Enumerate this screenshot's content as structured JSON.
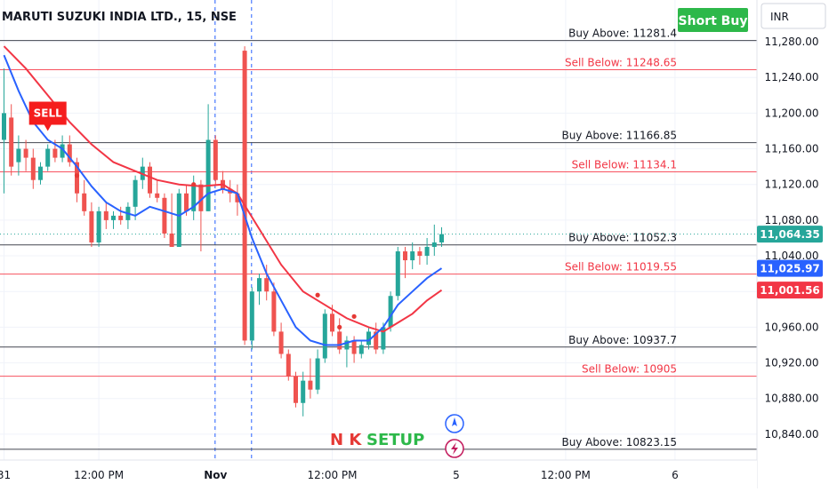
{
  "header": {
    "symbol_title": "MARUTI SUZUKI INDIA LTD., 15, NSE",
    "currency": "INR",
    "badge": "Short Buy",
    "badge_color": "#2db84a"
  },
  "colors": {
    "up": "#26a69a",
    "down": "#ef5350",
    "ema_fast": "#2962ff",
    "ema_slow": "#f23645",
    "buy_line": "#434651",
    "sell_line": "#f7525f",
    "current_price_line": "#26a69a",
    "session_sep": "#2962ff",
    "grid": "#f0f3fa"
  },
  "chart_data": {
    "type": "candlestick",
    "title": "MARUTI SUZUKI INDIA LTD., 15, NSE",
    "ylim": [
      10817,
      11290
    ],
    "yticks": [
      10840,
      10880,
      10920,
      10960,
      11000,
      11040,
      11080,
      11120,
      11160,
      11200,
      11240,
      11280
    ],
    "ytick_labels": [
      "10,840.00",
      "10,880.00",
      "10,920.00",
      "10,960.00",
      "11,000.00",
      "11,040.00",
      "11,080.00",
      "11,120.00",
      "11,160.00",
      "11,200.00",
      "11,240.00",
      "11,280.00"
    ],
    "xticks": [
      {
        "bar": 0,
        "label": "31"
      },
      {
        "bar": 13,
        "label": "12:00 PM"
      },
      {
        "bar": 29,
        "label": "Nov"
      },
      {
        "bar": 45,
        "label": "12:00 PM"
      },
      {
        "bar": 62,
        "label": "5"
      },
      {
        "bar": 77,
        "label": "12:00 PM"
      },
      {
        "bar": 92,
        "label": "6"
      }
    ],
    "session_breaks": [
      29,
      34
    ],
    "candles": [
      {
        "o": 11170,
        "h": 11250,
        "l": 11110,
        "c": 11200
      },
      {
        "o": 11195,
        "h": 11210,
        "l": 11130,
        "c": 11140
      },
      {
        "o": 11145,
        "h": 11175,
        "l": 11130,
        "c": 11160
      },
      {
        "o": 11160,
        "h": 11170,
        "l": 11135,
        "c": 11150
      },
      {
        "o": 11150,
        "h": 11160,
        "l": 11115,
        "c": 11125
      },
      {
        "o": 11125,
        "h": 11145,
        "l": 11120,
        "c": 11140
      },
      {
        "o": 11140,
        "h": 11165,
        "l": 11135,
        "c": 11160
      },
      {
        "o": 11160,
        "h": 11170,
        "l": 11145,
        "c": 11150
      },
      {
        "o": 11150,
        "h": 11175,
        "l": 11145,
        "c": 11165
      },
      {
        "o": 11165,
        "h": 11175,
        "l": 11140,
        "c": 11145
      },
      {
        "o": 11145,
        "h": 11150,
        "l": 11100,
        "c": 11110
      },
      {
        "o": 11110,
        "h": 11125,
        "l": 11085,
        "c": 11090
      },
      {
        "o": 11090,
        "h": 11100,
        "l": 11050,
        "c": 11055
      },
      {
        "o": 11055,
        "h": 11095,
        "l": 11050,
        "c": 11090
      },
      {
        "o": 11090,
        "h": 11100,
        "l": 11070,
        "c": 11080
      },
      {
        "o": 11080,
        "h": 11090,
        "l": 11070,
        "c": 11085
      },
      {
        "o": 11085,
        "h": 11095,
        "l": 11075,
        "c": 11080
      },
      {
        "o": 11080,
        "h": 11100,
        "l": 11070,
        "c": 11095
      },
      {
        "o": 11095,
        "h": 11130,
        "l": 11080,
        "c": 11125
      },
      {
        "o": 11125,
        "h": 11150,
        "l": 11115,
        "c": 11140
      },
      {
        "o": 11140,
        "h": 11145,
        "l": 11105,
        "c": 11110
      },
      {
        "o": 11110,
        "h": 11125,
        "l": 11100,
        "c": 11105
      },
      {
        "o": 11105,
        "h": 11110,
        "l": 11060,
        "c": 11065
      },
      {
        "o": 11065,
        "h": 11110,
        "l": 11050,
        "c": 11050
      },
      {
        "o": 11050,
        "h": 11115,
        "l": 11050,
        "c": 11110
      },
      {
        "o": 11110,
        "h": 11120,
        "l": 11085,
        "c": 11090
      },
      {
        "o": 11090,
        "h": 11130,
        "l": 11080,
        "c": 11120
      },
      {
        "o": 11120,
        "h": 11125,
        "l": 11045,
        "c": 11090
      },
      {
        "o": 11090,
        "h": 11210,
        "l": 11090,
        "c": 11170
      },
      {
        "o": 11170,
        "h": 11175,
        "l": 11120,
        "c": 11125
      },
      {
        "o": 11125,
        "h": 11135,
        "l": 11110,
        "c": 11115
      },
      {
        "o": 11115,
        "h": 11125,
        "l": 11100,
        "c": 11110
      },
      {
        "o": 11110,
        "h": 11120,
        "l": 11085,
        "c": 11100
      },
      {
        "o": 11270,
        "h": 11275,
        "l": 10940,
        "c": 10945
      },
      {
        "o": 10945,
        "h": 11005,
        "l": 10935,
        "c": 11000
      },
      {
        "o": 11000,
        "h": 11020,
        "l": 10985,
        "c": 11015
      },
      {
        "o": 11015,
        "h": 11030,
        "l": 10990,
        "c": 11000
      },
      {
        "o": 11000,
        "h": 11010,
        "l": 10950,
        "c": 10955
      },
      {
        "o": 10955,
        "h": 10965,
        "l": 10925,
        "c": 10930
      },
      {
        "o": 10930,
        "h": 10935,
        "l": 10900,
        "c": 10905
      },
      {
        "o": 10905,
        "h": 10910,
        "l": 10870,
        "c": 10875
      },
      {
        "o": 10875,
        "h": 10910,
        "l": 10860,
        "c": 10900
      },
      {
        "o": 10900,
        "h": 10925,
        "l": 10880,
        "c": 10890
      },
      {
        "o": 10890,
        "h": 10935,
        "l": 10885,
        "c": 10925
      },
      {
        "o": 10925,
        "h": 10980,
        "l": 10920,
        "c": 10975
      },
      {
        "o": 10975,
        "h": 10985,
        "l": 10950,
        "c": 10955
      },
      {
        "o": 10955,
        "h": 10970,
        "l": 10930,
        "c": 10935
      },
      {
        "o": 10935,
        "h": 10950,
        "l": 10915,
        "c": 10945
      },
      {
        "o": 10945,
        "h": 10950,
        "l": 10920,
        "c": 10930
      },
      {
        "o": 10930,
        "h": 10945,
        "l": 10925,
        "c": 10940
      },
      {
        "o": 10940,
        "h": 10960,
        "l": 10935,
        "c": 10955
      },
      {
        "o": 10955,
        "h": 10965,
        "l": 10930,
        "c": 10935
      },
      {
        "o": 10935,
        "h": 10965,
        "l": 10930,
        "c": 10960
      },
      {
        "o": 10960,
        "h": 11000,
        "l": 10955,
        "c": 10995
      },
      {
        "o": 10995,
        "h": 11050,
        "l": 10990,
        "c": 11045
      },
      {
        "o": 11045,
        "h": 11050,
        "l": 11015,
        "c": 11035
      },
      {
        "o": 11035,
        "h": 11055,
        "l": 11025,
        "c": 11045
      },
      {
        "o": 11045,
        "h": 11050,
        "l": 11030,
        "c": 11040
      },
      {
        "o": 11040,
        "h": 11060,
        "l": 11030,
        "c": 11050
      },
      {
        "o": 11050,
        "h": 11075,
        "l": 11040,
        "c": 11055
      },
      {
        "o": 11055,
        "h": 11072,
        "l": 11050,
        "c": 11064.35
      }
    ],
    "ema_fast": [
      [
        0,
        11265
      ],
      [
        2,
        11225
      ],
      [
        4,
        11190
      ],
      [
        6,
        11170
      ],
      [
        8,
        11160
      ],
      [
        10,
        11140
      ],
      [
        12,
        11118
      ],
      [
        14,
        11100
      ],
      [
        16,
        11090
      ],
      [
        18,
        11085
      ],
      [
        20,
        11095
      ],
      [
        22,
        11090
      ],
      [
        24,
        11085
      ],
      [
        26,
        11095
      ],
      [
        28,
        11110
      ],
      [
        30,
        11115
      ],
      [
        32,
        11110
      ],
      [
        34,
        11060
      ],
      [
        36,
        11020
      ],
      [
        38,
        10990
      ],
      [
        40,
        10960
      ],
      [
        42,
        10945
      ],
      [
        44,
        10940
      ],
      [
        46,
        10940
      ],
      [
        48,
        10945
      ],
      [
        50,
        10945
      ],
      [
        52,
        10960
      ],
      [
        54,
        10985
      ],
      [
        56,
        11000
      ],
      [
        58,
        11015
      ],
      [
        60,
        11025.97
      ]
    ],
    "ema_slow": [
      [
        0,
        11275
      ],
      [
        3,
        11250
      ],
      [
        6,
        11220
      ],
      [
        9,
        11190
      ],
      [
        12,
        11165
      ],
      [
        15,
        11145
      ],
      [
        18,
        11135
      ],
      [
        21,
        11125
      ],
      [
        24,
        11120
      ],
      [
        27,
        11118
      ],
      [
        30,
        11120
      ],
      [
        32,
        11110
      ],
      [
        35,
        11070
      ],
      [
        38,
        11030
      ],
      [
        41,
        11000
      ],
      [
        44,
        10985
      ],
      [
        47,
        10970
      ],
      [
        50,
        10960
      ],
      [
        52,
        10955
      ],
      [
        54,
        10965
      ],
      [
        56,
        10975
      ],
      [
        58,
        10990
      ],
      [
        60,
        11001.56
      ]
    ],
    "levels": [
      {
        "label": "Buy Above: 11281.4",
        "value": 11281.4,
        "kind": "buy"
      },
      {
        "label": "Sell Below: 11248.65",
        "value": 11248.65,
        "kind": "sell"
      },
      {
        "label": "Buy Above: 11166.85",
        "value": 11166.85,
        "kind": "buy"
      },
      {
        "label": "Sell Below: 11134.1",
        "value": 11134.1,
        "kind": "sell"
      },
      {
        "label": "Buy Above: 11052.3",
        "value": 11052.3,
        "kind": "buy"
      },
      {
        "label": "Sell Below: 11019.55",
        "value": 11019.55,
        "kind": "sell"
      },
      {
        "label": "Buy Above: 10937.7",
        "value": 10937.7,
        "kind": "buy"
      },
      {
        "label": "Sell Below: 10905",
        "value": 10905,
        "kind": "sell"
      },
      {
        "label": "Buy Above: 10823.15",
        "value": 10823.15,
        "kind": "buy"
      }
    ],
    "price_tags": [
      {
        "text": "11,064.35",
        "value": 11064.35,
        "color": "#26a69a"
      },
      {
        "text": "11,025.97",
        "value": 11025.97,
        "color": "#2962ff"
      },
      {
        "text": "11,001.56",
        "value": 11001.56,
        "color": "#f23645"
      }
    ],
    "current_price": 11064.35,
    "markers": [
      {
        "bar": 10,
        "value": 11130
      },
      {
        "bar": 26,
        "value": 11120
      },
      {
        "bar": 43,
        "value": 10996
      },
      {
        "bar": 46,
        "value": 10960
      },
      {
        "bar": 48,
        "value": 10972
      }
    ],
    "sell_signal": {
      "text": "SELL",
      "bar": 6,
      "value": 11165
    }
  },
  "annotations": {
    "setup_label_nk": "N K",
    "setup_label_setup": "SETUP"
  }
}
